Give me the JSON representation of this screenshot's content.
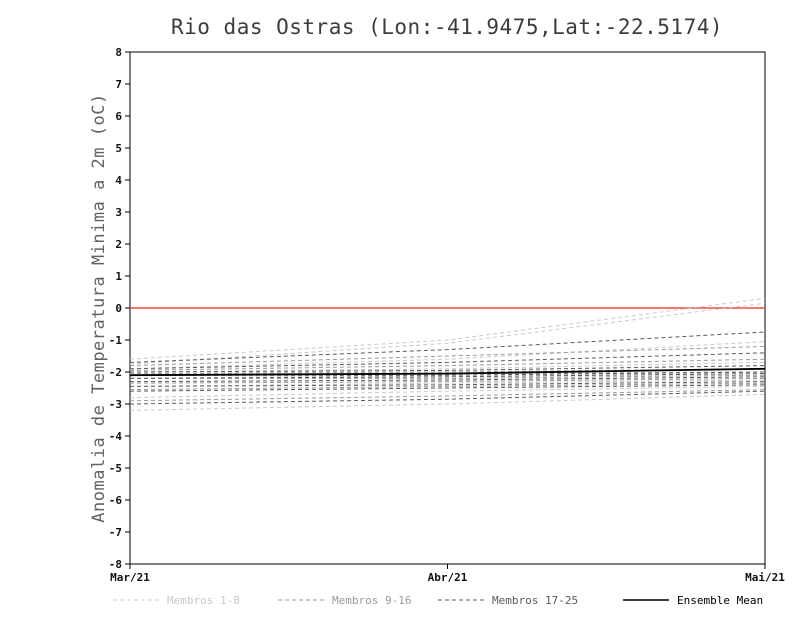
{
  "title": "Rio das Ostras (Lon:-41.9475,Lat:-22.5174)",
  "chart_data": {
    "type": "line",
    "title": "Rio das Ostras (Lon:-41.9475,Lat:-22.5174)",
    "ylabel": "Anomalia de Temperatura Minima a 2m (oC)",
    "xlabel": "",
    "ylim": [
      -8,
      8
    ],
    "y_ticks": [
      -8,
      -7,
      -6,
      -5,
      -4,
      -3,
      -2,
      -1,
      0,
      1,
      2,
      3,
      4,
      5,
      6,
      7,
      8
    ],
    "x_ticklabels": [
      "Mar/21",
      "Abr/21",
      "Mai/21"
    ],
    "grid": false,
    "legend_position": "bottom",
    "axis_color": "#000000",
    "zero_line": {
      "y": 0,
      "color": "#f2483c"
    },
    "series_groups": [
      {
        "name": "Membros 1-8",
        "color": "#c9c9c9",
        "line_style": "dashed",
        "members": [
          [
            -1.6,
            -1.0,
            0.3
          ],
          [
            -1.75,
            -1.1,
            0.15
          ],
          [
            -1.9,
            -1.6,
            -1.05
          ],
          [
            -2.0,
            -1.9,
            -1.7
          ],
          [
            -2.2,
            -2.1,
            -2.0
          ],
          [
            -2.45,
            -2.35,
            -2.25
          ],
          [
            -2.8,
            -2.6,
            -2.45
          ],
          [
            -3.2,
            -3.0,
            -2.7
          ]
        ]
      },
      {
        "name": "Membros 9-16",
        "color": "#9a9a9a",
        "line_style": "dashed",
        "members": [
          [
            -1.8,
            -1.5,
            -1.2
          ],
          [
            -1.95,
            -1.8,
            -1.6
          ],
          [
            -2.05,
            -2.0,
            -1.9
          ],
          [
            -2.1,
            -2.05,
            -2.0
          ],
          [
            -2.2,
            -2.2,
            -2.1
          ],
          [
            -2.35,
            -2.3,
            -2.2
          ],
          [
            -2.55,
            -2.45,
            -2.35
          ],
          [
            -2.9,
            -2.75,
            -2.55
          ]
        ]
      },
      {
        "name": "Membros 17-25",
        "color": "#5a5a5a",
        "line_style": "dashed",
        "members": [
          [
            -1.7,
            -1.3,
            -0.75
          ],
          [
            -1.9,
            -1.7,
            -1.4
          ],
          [
            -2.0,
            -1.95,
            -1.8
          ],
          [
            -2.1,
            -2.1,
            -2.0
          ],
          [
            -2.2,
            -2.15,
            -2.05
          ],
          [
            -2.3,
            -2.25,
            -2.15
          ],
          [
            -2.45,
            -2.4,
            -2.3
          ],
          [
            -2.6,
            -2.5,
            -2.4
          ],
          [
            -3.0,
            -2.85,
            -2.6
          ]
        ]
      }
    ],
    "ensemble_mean": {
      "name": "Ensemble Mean",
      "color": "#000000",
      "line_style": "solid",
      "values": [
        -2.1,
        -2.05,
        -1.9
      ]
    }
  },
  "legend": {
    "items": [
      {
        "label": "Membros 1-8",
        "color": "#c9c9c9",
        "style": "dashed"
      },
      {
        "label": "Membros 9-16",
        "color": "#9a9a9a",
        "style": "dashed"
      },
      {
        "label": "Membros 17-25",
        "color": "#5a5a5a",
        "style": "dashed"
      },
      {
        "label": "Ensemble Mean",
        "color": "#000000",
        "style": "solid"
      }
    ]
  }
}
